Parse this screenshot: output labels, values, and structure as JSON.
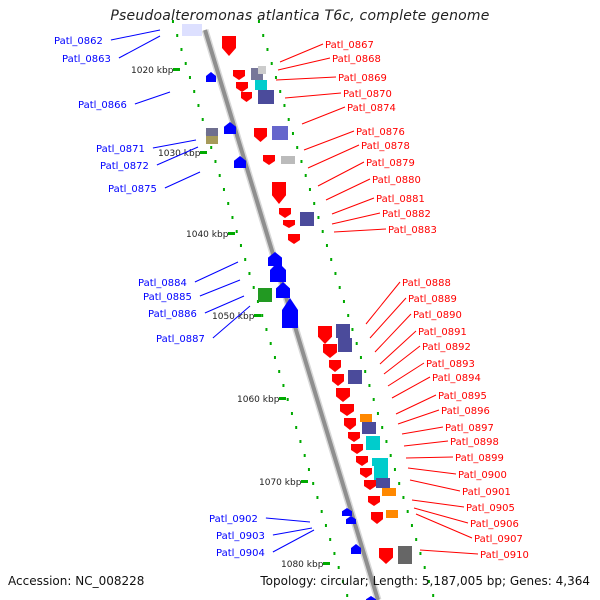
{
  "title": "Pseudoalteromonas atlantica T6c, complete genome",
  "footer": {
    "accession": "Accession: NC_008228",
    "summary": "Topology: circular; Length: 5,187,005 bp; Genes: 4,364"
  },
  "colors": {
    "backbone": "#8f8f8f",
    "forward_gene": "#ff0000",
    "reverse_gene": "#0000ff",
    "label_forward": "#ff0000",
    "label_reverse": "#0000ff",
    "tick": "#00aa00",
    "purple_box": "#4b4b9b",
    "cyan_box": "#00cccc",
    "orange_box": "#ff8800",
    "grey_box": "#9a9a9a",
    "green_box": "#229922",
    "olive_box": "#a69a5a"
  },
  "ticks": [
    "1020 kbp",
    "1030 kbp",
    "1040 kbp",
    "1050 kbp",
    "1060 kbp",
    "1070 kbp",
    "1080 kbp"
  ],
  "labels_left": [
    "Patl_0862",
    "Patl_0863",
    "Patl_0866",
    "Patl_0871",
    "Patl_0872",
    "Patl_0875",
    "Patl_0884",
    "Patl_0885",
    "Patl_0886",
    "Patl_0887",
    "Patl_0902",
    "Patl_0903",
    "Patl_0904"
  ],
  "labels_right": [
    "Patl_0867",
    "Patl_0868",
    "Patl_0869",
    "Patl_0870",
    "Patl_0874",
    "Patl_0876",
    "Patl_0878",
    "Patl_0879",
    "Patl_0880",
    "Patl_0881",
    "Patl_0882",
    "Patl_0883",
    "Patl_0888",
    "Patl_0889",
    "Patl_0890",
    "Patl_0891",
    "Patl_0892",
    "Patl_0893",
    "Patl_0894",
    "Patl_0895",
    "Patl_0896",
    "Patl_0897",
    "Patl_0898",
    "Patl_0899",
    "Patl_0900",
    "Patl_0901",
    "Patl_0905",
    "Patl_0906",
    "Patl_0907",
    "Patl_0910"
  ]
}
